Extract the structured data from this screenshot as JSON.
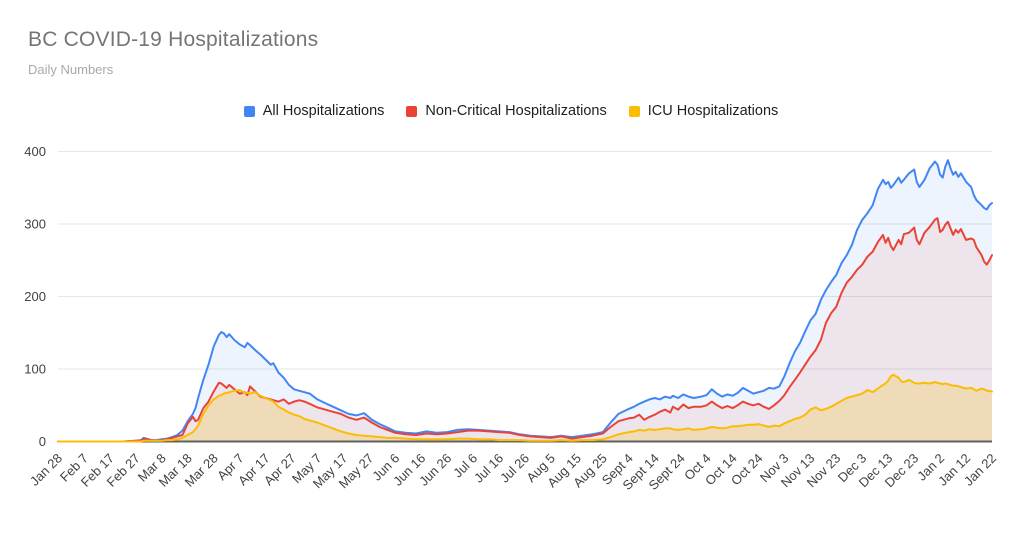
{
  "header": {
    "title": "BC COVID-19 Hospitalizations",
    "subtitle": "Daily Numbers"
  },
  "legend": [
    {
      "label": "All Hospitalizations",
      "color": "#4285F4"
    },
    {
      "label": "Non-Critical Hospitalizations",
      "color": "#EA4335"
    },
    {
      "label": "ICU Hospitalizations",
      "color": "#FBBC04"
    }
  ],
  "colors": {
    "grid": "#e6e6e6",
    "baseline": "#616161",
    "axis_text": "#424242",
    "title_text": "#757575",
    "subtitle_text": "#a9a9a9"
  },
  "chart_data": {
    "type": "area",
    "title": "BC COVID-19 Hospitalizations",
    "subtitle": "Daily Numbers",
    "xlabel": "",
    "ylabel": "",
    "ylim": [
      0,
      400
    ],
    "y_ticks": [
      0,
      100,
      200,
      300,
      400
    ],
    "grid": true,
    "legend_position": "top",
    "x_tick_labels": [
      "Jan 28",
      "Feb 7",
      "Feb 17",
      "Feb 27",
      "Mar 8",
      "Mar 18",
      "Mar 28",
      "Apr 7",
      "Apr 17",
      "Apr 27",
      "May 7",
      "May 17",
      "May 27",
      "Jun 6",
      "Jun 16",
      "Jun 26",
      "Jul 6",
      "Jul 16",
      "Jul 26",
      "Aug 5",
      "Aug 15",
      "Aug 25",
      "Sept 4",
      "Sept 14",
      "Sept 24",
      "Oct 4",
      "Oct 14",
      "Oct 24",
      "Nov 3",
      "Nov 13",
      "Nov 23",
      "Dec 3",
      "Dec 13",
      "Dec 23",
      "Jan 2",
      "Jan 12",
      "Jan 22"
    ],
    "x_tick_days": [
      0,
      10,
      20,
      30,
      40,
      50,
      60,
      70,
      80,
      90,
      100,
      110,
      120,
      130,
      140,
      150,
      160,
      170,
      180,
      190,
      200,
      210,
      220,
      230,
      240,
      250,
      260,
      270,
      280,
      290,
      300,
      310,
      320,
      330,
      340,
      350,
      360
    ],
    "x_days": [
      0,
      5,
      10,
      15,
      20,
      25,
      30,
      32,
      33,
      34,
      36,
      38,
      40,
      42,
      44,
      46,
      48,
      50,
      52,
      53,
      54,
      56,
      58,
      60,
      62,
      63,
      64,
      65,
      66,
      68,
      70,
      72,
      73,
      74,
      76,
      78,
      80,
      82,
      83,
      85,
      87,
      89,
      91,
      93,
      95,
      97,
      100,
      103,
      106,
      109,
      112,
      115,
      118,
      121,
      124,
      127,
      130,
      134,
      138,
      142,
      146,
      150,
      154,
      158,
      162,
      166,
      170,
      174,
      178,
      182,
      186,
      190,
      194,
      198,
      202,
      206,
      210,
      213,
      216,
      220,
      222,
      224,
      226,
      228,
      230,
      232,
      234,
      236,
      237,
      239,
      241,
      243,
      245,
      248,
      250,
      252,
      254,
      256,
      258,
      260,
      262,
      264,
      266,
      268,
      270,
      272,
      274,
      276,
      278,
      280,
      282,
      284,
      286,
      288,
      290,
      292,
      294,
      296,
      298,
      300,
      302,
      304,
      306,
      308,
      310,
      312,
      314,
      316,
      318,
      319,
      320,
      321,
      322,
      324,
      325,
      326,
      328,
      330,
      331,
      332,
      334,
      336,
      338,
      339,
      340,
      341,
      342,
      343,
      344,
      345,
      346,
      347,
      348,
      350,
      352,
      353,
      354,
      356,
      357,
      358,
      359,
      360
    ],
    "series": [
      {
        "name": "All Hospitalizations",
        "color": "#4285F4",
        "fill_opacity": 0.09,
        "values": [
          0,
          0,
          0,
          0,
          0,
          0,
          1,
          2,
          5,
          4,
          2,
          2,
          3,
          4,
          6,
          9,
          15,
          28,
          38,
          46,
          60,
          85,
          106,
          131,
          147,
          151,
          149,
          144,
          148,
          140,
          134,
          130,
          136,
          133,
          126,
          120,
          113,
          106,
          108,
          95,
          88,
          78,
          72,
          70,
          68,
          66,
          58,
          53,
          48,
          43,
          38,
          36,
          39,
          30,
          24,
          19,
          14,
          12,
          11,
          14,
          12,
          13,
          16,
          17,
          16,
          15,
          14,
          13,
          10,
          8,
          7,
          6,
          8,
          6,
          8,
          10,
          13,
          26,
          38,
          45,
          48,
          52,
          55,
          58,
          60,
          58,
          62,
          60,
          63,
          60,
          65,
          62,
          60,
          62,
          64,
          72,
          66,
          62,
          65,
          63,
          67,
          74,
          70,
          66,
          68,
          70,
          74,
          73,
          76,
          90,
          108,
          124,
          136,
          152,
          167,
          176,
          195,
          209,
          220,
          230,
          246,
          257,
          271,
          292,
          306,
          315,
          326,
          348,
          361,
          355,
          358,
          350,
          354,
          364,
          357,
          361,
          370,
          375,
          358,
          351,
          361,
          377,
          386,
          382,
          368,
          364,
          379,
          388,
          377,
          368,
          372,
          365,
          370,
          358,
          351,
          340,
          333,
          326,
          322,
          320,
          326,
          329
        ]
      },
      {
        "name": "Non-Critical Hospitalizations",
        "color": "#EA4335",
        "fill_opacity": 0.09,
        "values": [
          0,
          0,
          0,
          0,
          0,
          0,
          1,
          1,
          4,
          3,
          2,
          1,
          2,
          3,
          5,
          7,
          9,
          25,
          34,
          28,
          30,
          46,
          55,
          69,
          81,
          80,
          77,
          74,
          78,
          72,
          66,
          68,
          64,
          76,
          69,
          62,
          60,
          58,
          57,
          55,
          58,
          52,
          55,
          57,
          55,
          52,
          47,
          44,
          41,
          38,
          33,
          30,
          33,
          26,
          20,
          16,
          12,
          10,
          9,
          11,
          10,
          11,
          13,
          15,
          15,
          14,
          13,
          12,
          9,
          7,
          6,
          5,
          7,
          4,
          6,
          8,
          11,
          20,
          28,
          32,
          33,
          37,
          30,
          34,
          37,
          41,
          44,
          40,
          48,
          44,
          51,
          46,
          48,
          48,
          50,
          55,
          50,
          46,
          49,
          46,
          50,
          55,
          52,
          50,
          52,
          48,
          45,
          50,
          56,
          64,
          75,
          85,
          95,
          106,
          117,
          126,
          140,
          164,
          177,
          186,
          205,
          219,
          227,
          237,
          244,
          255,
          262,
          275,
          285,
          274,
          281,
          270,
          264,
          278,
          272,
          286,
          288,
          295,
          278,
          272,
          288,
          296,
          306,
          308,
          289,
          292,
          299,
          303,
          294,
          285,
          292,
          288,
          293,
          278,
          280,
          278,
          268,
          257,
          248,
          244,
          250,
          257
        ]
      },
      {
        "name": "ICU Hospitalizations",
        "color": "#FBBC04",
        "fill_opacity": 0.22,
        "values": [
          0,
          0,
          0,
          0,
          0,
          0,
          0,
          0,
          1,
          1,
          1,
          1,
          1,
          2,
          2,
          3,
          5,
          9,
          13,
          17,
          22,
          38,
          50,
          58,
          63,
          64,
          66,
          67,
          68,
          70,
          71,
          67,
          67,
          66,
          68,
          63,
          60,
          57,
          55,
          48,
          44,
          40,
          37,
          35,
          31,
          29,
          26,
          22,
          18,
          14,
          11,
          9,
          8,
          7,
          6,
          5,
          5,
          4,
          3,
          3,
          3,
          3,
          4,
          4,
          3,
          3,
          2,
          2,
          2,
          1,
          1,
          1,
          2,
          1,
          2,
          2,
          3,
          6,
          10,
          13,
          14,
          16,
          15,
          17,
          16,
          17,
          18,
          18,
          17,
          16,
          17,
          18,
          16,
          17,
          18,
          20,
          19,
          18,
          19,
          21,
          21,
          22,
          23,
          23,
          24,
          22,
          20,
          22,
          21,
          25,
          28,
          31,
          33,
          37,
          44,
          47,
          43,
          45,
          48,
          52,
          56,
          60,
          62,
          64,
          66,
          71,
          68,
          73,
          78,
          80,
          84,
          90,
          92,
          88,
          83,
          82,
          85,
          81,
          80,
          80,
          81,
          80,
          82,
          81,
          80,
          79,
          80,
          79,
          78,
          77,
          77,
          76,
          75,
          73,
          74,
          72,
          70,
          73,
          72,
          70,
          70,
          69
        ]
      }
    ]
  }
}
